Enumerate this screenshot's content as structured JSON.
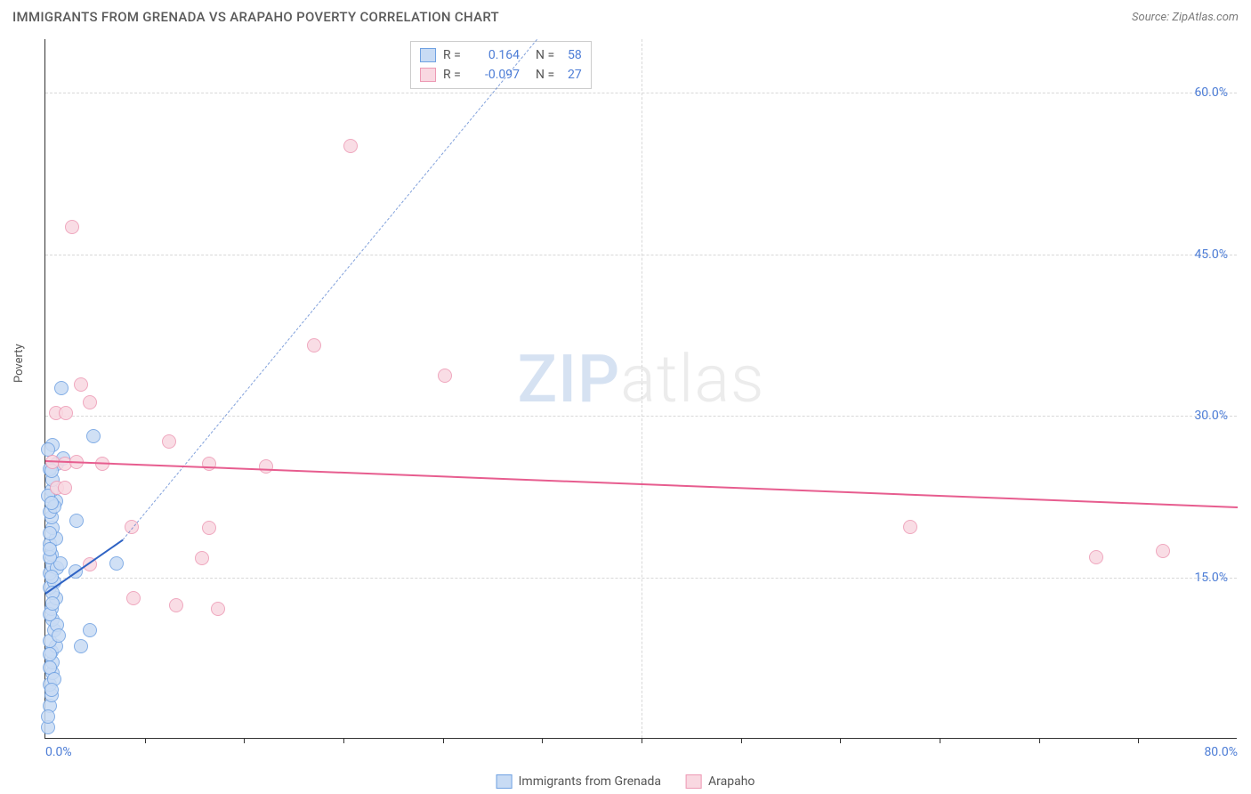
{
  "title": "IMMIGRANTS FROM GRENADA VS ARAPAHO POVERTY CORRELATION CHART",
  "source": "Source: ZipAtlas.com",
  "y_axis_label": "Poverty",
  "watermark": {
    "zip": "ZIP",
    "atlas": "atlas"
  },
  "chart": {
    "type": "scatter",
    "xlim": [
      0,
      80
    ],
    "ylim": [
      0,
      65
    ],
    "background_color": "#ffffff",
    "grid_color": "#d8d8d8",
    "tick_label_color": "#4d7dd6",
    "y_ticks": [
      {
        "value": 15,
        "label": "15.0%"
      },
      {
        "value": 30,
        "label": "30.0%"
      },
      {
        "value": 45,
        "label": "45.0%"
      },
      {
        "value": 60,
        "label": "60.0%"
      }
    ],
    "x_ticks_labeled": [
      {
        "value": 0,
        "label": "0.0%"
      },
      {
        "value": 80,
        "label": "80.0%"
      }
    ],
    "x_tick_marks": [
      6.7,
      13.3,
      20,
      26.7,
      33.3,
      40,
      46.7,
      53.3,
      60,
      66.7,
      73.3
    ],
    "point_radius": 8,
    "point_opacity": 0.85,
    "series": [
      {
        "name": "Immigrants from Grenada",
        "fill": "#c8dbf4",
        "stroke": "#6fa1e2",
        "R": "0.164",
        "N": "58",
        "trend": {
          "x1": 0,
          "y1": 13.5,
          "x2": 5.2,
          "y2": 18.5,
          "color": "#2f63c4",
          "dashed_extend": {
            "x1": 5.2,
            "y1": 18.5,
            "x2": 33,
            "y2": 65
          }
        },
        "points": [
          [
            0.2,
            1
          ],
          [
            0.3,
            3
          ],
          [
            0.4,
            4
          ],
          [
            0.3,
            5
          ],
          [
            0.5,
            6
          ],
          [
            0.5,
            7
          ],
          [
            0.4,
            8
          ],
          [
            0.7,
            8.5
          ],
          [
            0.3,
            9
          ],
          [
            0.6,
            10
          ],
          [
            0.5,
            11
          ],
          [
            0.8,
            10.5
          ],
          [
            0.4,
            12
          ],
          [
            0.7,
            13
          ],
          [
            0.3,
            14
          ],
          [
            0.6,
            14.5
          ],
          [
            0.3,
            15.3
          ],
          [
            0.5,
            16
          ],
          [
            0.8,
            15.8
          ],
          [
            0.4,
            17
          ],
          [
            0.3,
            18
          ],
          [
            0.7,
            18.5
          ],
          [
            0.5,
            19.5
          ],
          [
            0.4,
            20.5
          ],
          [
            0.3,
            21
          ],
          [
            0.7,
            22
          ],
          [
            0.4,
            23
          ],
          [
            0.2,
            22.5
          ],
          [
            0.5,
            24
          ],
          [
            0.8,
            25.5
          ],
          [
            0.3,
            25
          ],
          [
            1.2,
            26
          ],
          [
            0.5,
            27.2
          ],
          [
            3.2,
            28
          ],
          [
            1.0,
            16.2
          ],
          [
            2.0,
            15.5
          ],
          [
            2.4,
            8.5
          ],
          [
            3.0,
            10
          ],
          [
            2.1,
            20.2
          ],
          [
            1.1,
            32.5
          ],
          [
            0.2,
            2
          ],
          [
            0.3,
            6.5
          ],
          [
            0.6,
            5.5
          ],
          [
            0.9,
            9.5
          ],
          [
            0.3,
            11.5
          ],
          [
            0.5,
            13.5
          ],
          [
            0.3,
            16.8
          ],
          [
            0.3,
            19
          ],
          [
            0.6,
            21.5
          ],
          [
            0.4,
            24.8
          ],
          [
            0.2,
            26.8
          ],
          [
            4.8,
            16.2
          ],
          [
            0.4,
            4.5
          ],
          [
            0.3,
            7.8
          ],
          [
            0.5,
            12.5
          ],
          [
            0.4,
            15
          ],
          [
            0.3,
            17.5
          ],
          [
            0.4,
            21.8
          ]
        ]
      },
      {
        "name": "Arapaho",
        "fill": "#f9d8e1",
        "stroke": "#ed99b4",
        "R": "-0.097",
        "N": "27",
        "trend": {
          "x1": 0,
          "y1": 25.8,
          "x2": 80,
          "y2": 21.5,
          "color": "#e75d8f"
        },
        "points": [
          [
            2.4,
            32.8
          ],
          [
            0.7,
            30.2
          ],
          [
            1.4,
            30.2
          ],
          [
            3.0,
            31.2
          ],
          [
            0.5,
            25.6
          ],
          [
            1.3,
            25.5
          ],
          [
            0.8,
            23.2
          ],
          [
            2.1,
            25.6
          ],
          [
            3.8,
            25.5
          ],
          [
            1.3,
            23.2
          ],
          [
            5.9,
            13.0
          ],
          [
            8.3,
            27.5
          ],
          [
            11.0,
            19.5
          ],
          [
            11.0,
            25.5
          ],
          [
            10.5,
            16.7
          ],
          [
            8.8,
            12.3
          ],
          [
            11.6,
            12.0
          ],
          [
            14.8,
            25.2
          ],
          [
            3.0,
            16.1
          ],
          [
            5.8,
            19.6
          ],
          [
            1.8,
            47.5
          ],
          [
            20.5,
            55.0
          ],
          [
            18.0,
            36.5
          ],
          [
            26.8,
            33.7
          ],
          [
            58.0,
            19.6
          ],
          [
            70.5,
            16.8
          ],
          [
            75.0,
            17.4
          ]
        ]
      }
    ]
  },
  "stats_labels": {
    "r": "R =",
    "n": "N ="
  }
}
